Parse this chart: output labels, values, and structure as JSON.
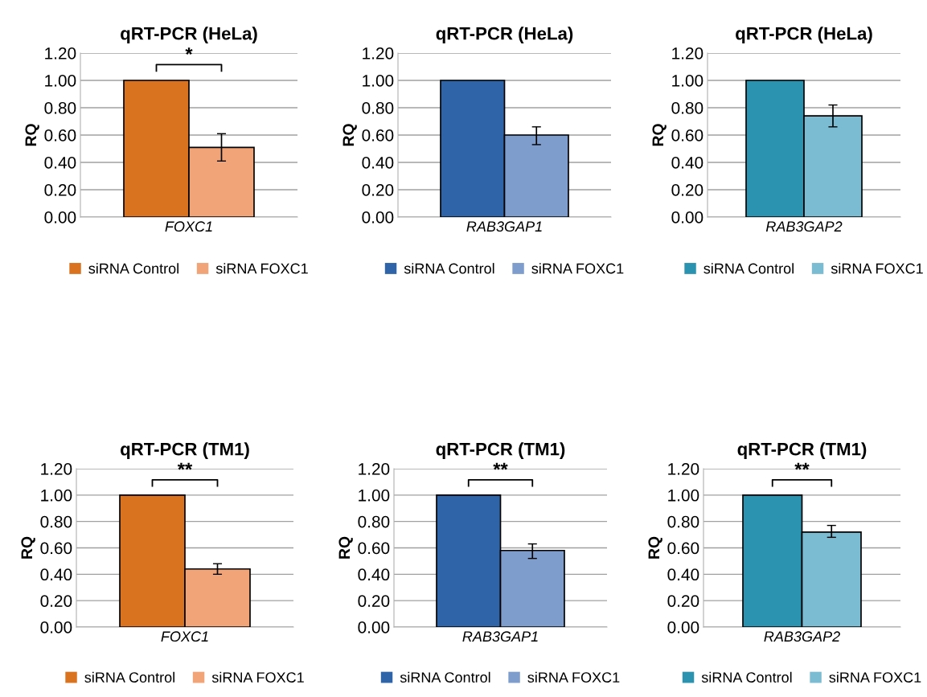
{
  "chart_data": [
    {
      "type": "bar",
      "title": "qRT-PCR (HeLa)",
      "ylabel": "RQ",
      "categories": [
        "FOXC1"
      ],
      "series": [
        {
          "name": "siRNA Control",
          "color": "#d9731f",
          "values": [
            1.0
          ]
        },
        {
          "name": "siRNA FOXC1",
          "color": "#f2a479",
          "values": [
            0.51
          ],
          "errors": [
            0.1
          ]
        }
      ],
      "ylim": [
        0,
        1.2
      ],
      "yticks": [
        {
          "value": 0,
          "label": "0.00"
        },
        {
          "value": 0.2,
          "label": "0.20"
        },
        {
          "value": 0.4,
          "label": "0.40"
        },
        {
          "value": 0.6,
          "label": "0.60"
        },
        {
          "value": 0.8,
          "label": "0.80"
        },
        {
          "value": 1.0,
          "label": "1.00"
        },
        {
          "value": 1.2,
          "label": "1.20"
        }
      ],
      "grid": "y",
      "legend": "bottom",
      "annotations": [
        "*"
      ]
    },
    {
      "type": "bar",
      "title": "qRT-PCR (HeLa)",
      "ylabel": "RQ",
      "categories": [
        "RAB3GAP1"
      ],
      "series": [
        {
          "name": "siRNA Control",
          "color": "#2f64a8",
          "values": [
            1.0
          ]
        },
        {
          "name": "siRNA FOXC1",
          "color": "#7f9dcc",
          "values": [
            0.6
          ],
          "errors": [
            [
              0.53,
              0.66
            ]
          ]
        }
      ],
      "ylim": [
        0,
        1.2
      ],
      "yticks": [
        {
          "value": 0,
          "label": "0.00"
        },
        {
          "value": 0.2,
          "label": "0.20"
        },
        {
          "value": 0.4,
          "label": "0.40"
        },
        {
          "value": 0.6,
          "label": "0.60"
        },
        {
          "value": 0.8,
          "label": "0.80"
        },
        {
          "value": 1.0,
          "label": "1.00"
        },
        {
          "value": 1.2,
          "label": "1.20"
        }
      ],
      "grid": "y",
      "legend": "bottom"
    },
    {
      "type": "bar",
      "title": "qRT-PCR (HeLa)",
      "ylabel": "RQ",
      "categories": [
        "RAB3GAP2"
      ],
      "series": [
        {
          "name": "siRNA Control",
          "color": "#2b93b0",
          "values": [
            1.0
          ]
        },
        {
          "name": "siRNA FOXC1",
          "color": "#7cbcd2",
          "values": [
            0.74
          ],
          "errors": [
            0.08
          ]
        }
      ],
      "ylim": [
        0,
        1.2
      ],
      "yticks": [
        {
          "value": 0,
          "label": "0.00"
        },
        {
          "value": 0.2,
          "label": "0.20"
        },
        {
          "value": 0.4,
          "label": "0.40"
        },
        {
          "value": 0.6,
          "label": "0.60"
        },
        {
          "value": 0.8,
          "label": "0.80"
        },
        {
          "value": 1.0,
          "label": "1.00"
        },
        {
          "value": 1.2,
          "label": "1.20"
        }
      ],
      "grid": "y",
      "legend": "bottom"
    },
    {
      "type": "bar",
      "title": "qRT-PCR (TM1)",
      "ylabel": "RQ",
      "categories": [
        "FOXC1"
      ],
      "series": [
        {
          "name": "siRNA Control",
          "color": "#d9731f",
          "values": [
            1.0
          ]
        },
        {
          "name": "siRNA FOXC1",
          "color": "#f2a479",
          "values": [
            0.44
          ],
          "errors": [
            0.04
          ]
        }
      ],
      "ylim": [
        0,
        1.2
      ],
      "yticks": [
        {
          "value": 0,
          "label": "0.00"
        },
        {
          "value": 0.2,
          "label": "0.20"
        },
        {
          "value": 0.4,
          "label": "0.40"
        },
        {
          "value": 0.6,
          "label": "0.60"
        },
        {
          "value": 0.8,
          "label": "0.80"
        },
        {
          "value": 1.0,
          "label": "1.00"
        },
        {
          "value": 1.2,
          "label": "1.20"
        }
      ],
      "grid": "y",
      "legend": "bottom",
      "annotations": [
        "**"
      ]
    },
    {
      "type": "bar",
      "title": "qRT-PCR (TM1)",
      "ylabel": "RQ",
      "categories": [
        "RAB3GAP1"
      ],
      "series": [
        {
          "name": "siRNA Control",
          "color": "#2f64a8",
          "values": [
            1.0
          ]
        },
        {
          "name": "siRNA FOXC1",
          "color": "#7f9dcc",
          "values": [
            0.58
          ],
          "errors": [
            [
              0.52,
              0.63
            ]
          ]
        }
      ],
      "ylim": [
        0,
        1.2
      ],
      "yticks": [
        {
          "value": 0,
          "label": "0.00"
        },
        {
          "value": 0.2,
          "label": "0.20"
        },
        {
          "value": 0.4,
          "label": "0.40"
        },
        {
          "value": 0.6,
          "label": "0.60"
        },
        {
          "value": 0.8,
          "label": "0.80"
        },
        {
          "value": 1.0,
          "label": "1.00"
        },
        {
          "value": 1.2,
          "label": "1.20"
        }
      ],
      "grid": "y",
      "legend": "bottom",
      "annotations": [
        "**"
      ]
    },
    {
      "type": "bar",
      "title": "qRT-PCR (TM1)",
      "ylabel": "RQ",
      "categories": [
        "RAB3GAP2"
      ],
      "series": [
        {
          "name": "siRNA Control",
          "color": "#2b93b0",
          "values": [
            1.0
          ]
        },
        {
          "name": "siRNA FOXC1",
          "color": "#7cbcd2",
          "values": [
            0.72
          ],
          "errors": [
            [
              0.68,
              0.77
            ]
          ]
        }
      ],
      "ylim": [
        0,
        1.2
      ],
      "yticks": [
        {
          "value": 0,
          "label": "0.00"
        },
        {
          "value": 0.2,
          "label": "0.20"
        },
        {
          "value": 0.4,
          "label": "0.40"
        },
        {
          "value": 0.6,
          "label": "0.60"
        },
        {
          "value": 0.8,
          "label": "0.80"
        },
        {
          "value": 1.0,
          "label": "1.00"
        },
        {
          "value": 1.2,
          "label": "1.20"
        }
      ],
      "grid": "y",
      "legend": "bottom",
      "annotations": [
        "**"
      ]
    }
  ]
}
